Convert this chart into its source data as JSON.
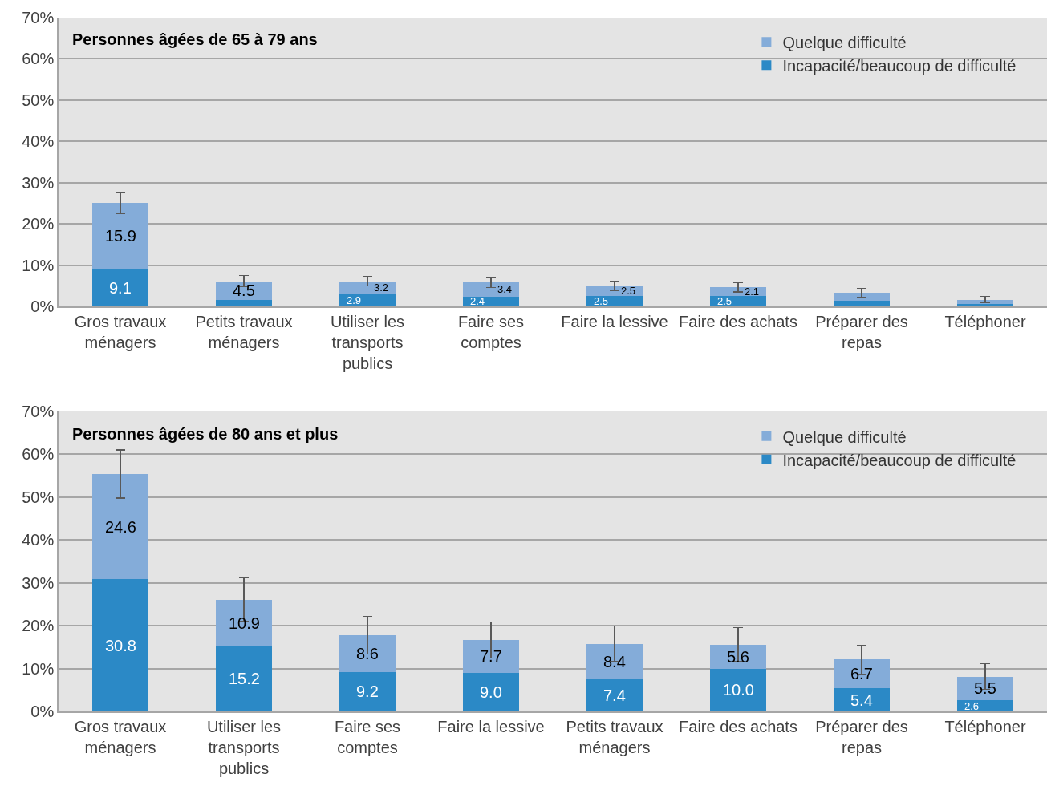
{
  "chart_data": [
    {
      "type": "bar",
      "title": "Personnes âgées de 65 à 79 ans",
      "stacked": true,
      "grid": "y",
      "legend": "top right",
      "categories": [
        "Gros travaux ménagers",
        "Petits travaux ménagers",
        "Utiliser les transports publics",
        "Faire ses comptes",
        "Faire la lessive",
        "Faire des achats",
        "Préparer des repas",
        "Téléphoner"
      ],
      "ylim": [
        0,
        70
      ],
      "yticks": [
        {
          "value": 0,
          "label": "0%"
        },
        {
          "value": 10,
          "label": "10%"
        },
        {
          "value": 20,
          "label": "20%"
        },
        {
          "value": 30,
          "label": "30%"
        },
        {
          "value": 40,
          "label": "40%"
        },
        {
          "value": 50,
          "label": "50%"
        },
        {
          "value": 60,
          "label": "60%"
        },
        {
          "value": 70,
          "label": "70%"
        }
      ],
      "series": [
        {
          "name": "Incapacité/beaucoup de difficulté",
          "color": "#2b89c6",
          "values": [
            9.1,
            1.6,
            2.9,
            2.4,
            2.5,
            2.5,
            1.4,
            0.5
          ],
          "value_labels": [
            "9.1",
            null,
            "2.9",
            "2.4",
            "2.5",
            "2.5",
            null,
            null
          ]
        },
        {
          "name": "Quelque difficulté",
          "color": "#84acd9",
          "values": [
            15.9,
            4.5,
            3.2,
            3.4,
            2.5,
            2.1,
            1.9,
            1.1
          ],
          "value_labels": [
            "15.9",
            "4.5",
            "3.2",
            "3.4",
            "2.5",
            "2.1",
            null,
            null
          ],
          "errors": [
            2.5,
            1.4,
            1.2,
            1.2,
            1.2,
            1.1,
            1.0,
            0.8
          ]
        }
      ]
    },
    {
      "type": "bar",
      "title": "Personnes âgées de 80 ans et plus",
      "stacked": true,
      "grid": "y",
      "legend": "top right",
      "categories": [
        "Gros travaux ménagers",
        "Utiliser les transports publics",
        "Faire ses comptes",
        "Faire la lessive",
        "Petits travaux ménagers",
        "Faire des achats",
        "Préparer des repas",
        "Téléphoner"
      ],
      "ylim": [
        0,
        70
      ],
      "yticks": [
        {
          "value": 0,
          "label": "0%"
        },
        {
          "value": 10,
          "label": "10%"
        },
        {
          "value": 20,
          "label": "20%"
        },
        {
          "value": 30,
          "label": "30%"
        },
        {
          "value": 40,
          "label": "40%"
        },
        {
          "value": 50,
          "label": "50%"
        },
        {
          "value": 60,
          "label": "60%"
        },
        {
          "value": 70,
          "label": "70%"
        }
      ],
      "series": [
        {
          "name": "Incapacité/beaucoup de difficulté",
          "color": "#2b89c6",
          "values": [
            30.8,
            15.2,
            9.2,
            9.0,
            7.4,
            10.0,
            5.4,
            2.6
          ],
          "value_labels": [
            "30.8",
            "15.2",
            "9.2",
            "9.0",
            "7.4",
            "10.0",
            "5.4",
            "2.6"
          ]
        },
        {
          "name": "Quelque difficulté",
          "color": "#84acd9",
          "values": [
            24.6,
            10.9,
            8.6,
            7.7,
            8.4,
            5.6,
            6.7,
            5.5
          ],
          "value_labels": [
            "24.6",
            "10.9",
            "8.6",
            "7.7",
            "8.4",
            "5.6",
            "6.7",
            "5.5"
          ],
          "errors": [
            5.6,
            5.0,
            4.4,
            4.2,
            4.1,
            4.0,
            3.4,
            3.0
          ]
        }
      ]
    }
  ]
}
